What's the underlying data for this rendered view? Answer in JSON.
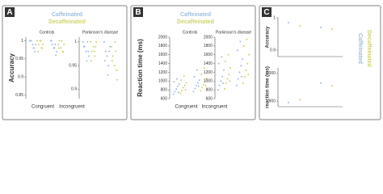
{
  "chart_data": [
    {
      "type": "strip",
      "panel": "A",
      "legend": "top",
      "ylabel": "Accuracy",
      "title": "Controls",
      "categories": [
        "Congruent",
        "Incongruent"
      ],
      "ylim": [
        0.84,
        1.01
      ],
      "yticks": [
        0.85,
        0.9,
        0.95,
        1
      ],
      "series": [
        {
          "name": "Caffeinated",
          "color": "#9fbfe0",
          "values": [
            [
              1,
              1,
              0.99,
              0.98,
              0.99,
              1,
              0.98,
              0.97
            ],
            [
              1,
              0.99,
              0.98,
              0.99,
              0.97,
              1,
              0.98,
              0.96
            ]
          ]
        },
        {
          "name": "Decaffeinated",
          "color": "#cfd36a",
          "values": [
            [
              1,
              0.99,
              1,
              0.98,
              0.99,
              0.97,
              1,
              0.98
            ],
            [
              0.99,
              1,
              0.98,
              0.97,
              0.99,
              0.98,
              1,
              0.97
            ]
          ]
        }
      ]
    },
    {
      "type": "strip",
      "title": "Parkinson's disease",
      "categories": [
        null,
        null
      ],
      "ylim": [
        0.88,
        1.01
      ],
      "yticks": [
        0.9,
        0.95,
        1
      ],
      "series": [
        {
          "color": "#9fbfe0",
          "values": [
            [
              1,
              0.99,
              0.98,
              1,
              0.97,
              0.99,
              0.96,
              0.98
            ],
            [
              1,
              0.98,
              0.97,
              0.95,
              0.99,
              0.96,
              0.93,
              0.98
            ]
          ]
        },
        {
          "color": "#cfd36a",
          "values": [
            [
              1,
              0.98,
              0.99,
              0.97,
              1,
              0.96,
              0.98,
              0.99
            ],
            [
              0.99,
              0.97,
              0.95,
              0.98,
              0.92,
              0.96,
              1,
              0.94
            ]
          ]
        }
      ]
    },
    {
      "type": "strip",
      "panel": "B",
      "legend": "top",
      "ylabel": "Reaction time (ms)",
      "title": "Controls",
      "categories": [
        "Congruent",
        "Incongruent"
      ],
      "ylim": [
        600,
        2000
      ],
      "yticks": [
        600,
        800,
        1000,
        1200,
        1400,
        1600,
        1800,
        2000
      ],
      "series": [
        {
          "name": "Caffeinated",
          "color": "#9fbfe0",
          "values": [
            [
              700,
              760,
              820,
              880,
              930,
              980,
              1050,
              740
            ],
            [
              760,
              830,
              900,
              960,
              1020,
              1100,
              1250,
              880
            ]
          ]
        },
        {
          "name": "Decaffeinated",
          "color": "#cfd36a",
          "values": [
            [
              720,
              780,
              850,
              900,
              960,
              1020,
              1120,
              800
            ],
            [
              780,
              850,
              920,
              990,
              1060,
              1150,
              1300,
              900
            ]
          ]
        }
      ]
    },
    {
      "type": "strip",
      "title": "Parkinson's disease",
      "categories": [
        null,
        null
      ],
      "ylim": [
        600,
        2000
      ],
      "yticks": [
        600,
        800,
        1000,
        1200,
        1400,
        1600,
        1800,
        2000
      ],
      "series": [
        {
          "color": "#9fbfe0",
          "values": [
            [
              800,
              900,
              1000,
              1100,
              1250,
              1400,
              1550,
              950
            ],
            [
              900,
              1050,
              1200,
              1350,
              1500,
              1700,
              1900,
              1100
            ]
          ]
        },
        {
          "color": "#cfd36a",
          "values": [
            [
              820,
              950,
              1050,
              1150,
              1300,
              1450,
              1600,
              1000
            ],
            [
              950,
              1100,
              1250,
              1400,
              1600,
              1800,
              1950,
              1150
            ]
          ]
        }
      ]
    },
    {
      "type": "strip",
      "panel": "C",
      "legend": "right",
      "ylabel": "Accuracy",
      "categories": [
        null,
        null
      ],
      "ylim": [
        0.88,
        1.0
      ],
      "yticks": [
        0.9,
        1
      ],
      "series": [
        {
          "name": "Caffeinated",
          "color": "#9fbfe0",
          "values": [
            [
              0.985
            ],
            [
              0.97
            ]
          ]
        },
        {
          "name": "Decaffeinated",
          "color": "#cfd36a",
          "values": [
            [
              0.975
            ],
            [
              0.965
            ]
          ]
        }
      ]
    },
    {
      "type": "strip",
      "ylabel": "reaction time (ms)",
      "categories": [
        null,
        null
      ],
      "ylim": [
        880,
        1020
      ],
      "yticks": [
        900,
        1000
      ],
      "series": [
        {
          "color": "#9fbfe0",
          "values": [
            [
              895
            ],
            [
              965
            ]
          ]
        },
        {
          "color": "#cfd36a",
          "values": [
            [
              905
            ],
            [
              955
            ]
          ]
        }
      ]
    }
  ]
}
